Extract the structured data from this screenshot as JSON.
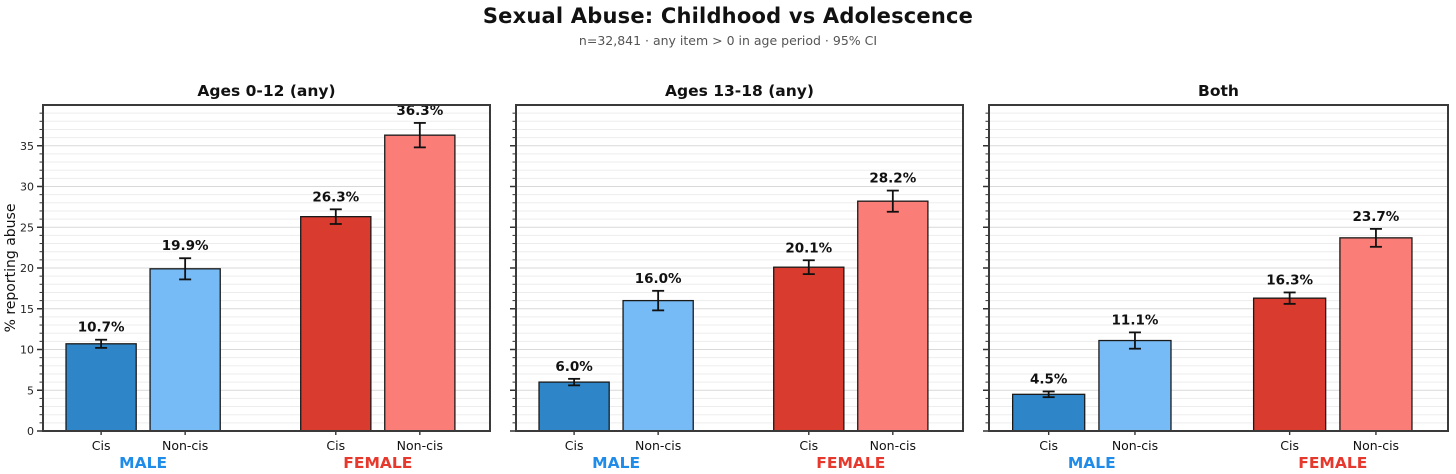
{
  "chart_data": {
    "type": "bar",
    "title": "Sexual Abuse: Childhood vs Adolescence",
    "subtitle": "n=32,841 · any item > 0 in age period · 95% CI",
    "ylabel": "% reporting abuse",
    "ylim": [
      0,
      40
    ],
    "yticks": [
      0,
      5,
      10,
      15,
      20,
      25,
      30,
      35
    ],
    "grid": "minor horizontal gridlines every 1, major every 5",
    "legend_position": "none",
    "categories": [
      "Cis",
      "Non-cis",
      "Cis",
      "Non-cis"
    ],
    "bar_colors": [
      "#2e86c8",
      "#76baf6",
      "#d93b2e",
      "#fb7d78"
    ],
    "bar_edge_color": "#1a1a1a",
    "error_bar_color": "#111111",
    "group_labels": [
      {
        "label": "MALE",
        "color": "#1e8ce8"
      },
      {
        "label": "FEMALE",
        "color": "#e6382c"
      }
    ],
    "panels": [
      {
        "title": "Ages 0-12 (any)",
        "series": [
          {
            "name": "Cis male",
            "value": 10.7,
            "ci": 0.5,
            "label": "10.7%"
          },
          {
            "name": "Non-cis male",
            "value": 19.9,
            "ci": 1.3,
            "label": "19.9%"
          },
          {
            "name": "Cis female",
            "value": 26.3,
            "ci": 0.9,
            "label": "26.3%"
          },
          {
            "name": "Non-cis female",
            "value": 36.3,
            "ci": 1.5,
            "label": "36.3%"
          }
        ]
      },
      {
        "title": "Ages 13-18 (any)",
        "series": [
          {
            "name": "Cis male",
            "value": 6.0,
            "ci": 0.4,
            "label": "6.0%"
          },
          {
            "name": "Non-cis male",
            "value": 16.0,
            "ci": 1.2,
            "label": "16.0%"
          },
          {
            "name": "Cis female",
            "value": 20.1,
            "ci": 0.85,
            "label": "20.1%"
          },
          {
            "name": "Non-cis female",
            "value": 28.2,
            "ci": 1.3,
            "label": "28.2%"
          }
        ]
      },
      {
        "title": "Both",
        "series": [
          {
            "name": "Cis male",
            "value": 4.5,
            "ci": 0.35,
            "label": "4.5%"
          },
          {
            "name": "Non-cis male",
            "value": 11.1,
            "ci": 1.0,
            "label": "11.1%"
          },
          {
            "name": "Cis female",
            "value": 16.3,
            "ci": 0.7,
            "label": "16.3%"
          },
          {
            "name": "Non-cis female",
            "value": 23.7,
            "ci": 1.1,
            "label": "23.7%"
          }
        ]
      }
    ]
  }
}
